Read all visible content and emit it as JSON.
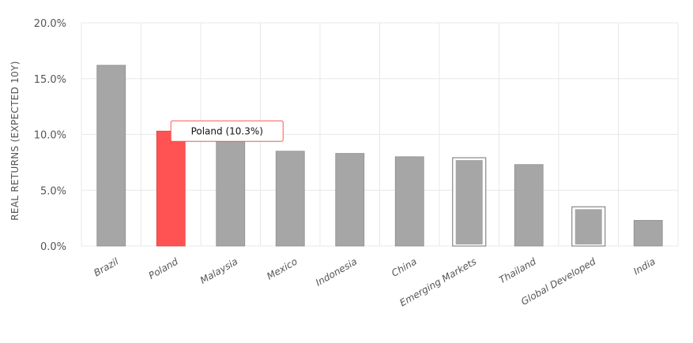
{
  "chart_data": {
    "type": "bar",
    "title": "",
    "xlabel": "",
    "ylabel": "REAL RETURNS (EXPECTED 10Y)",
    "ylim": [
      0,
      20
    ],
    "y_ticks": [
      "0.0%",
      "5.0%",
      "10.0%",
      "15.0%",
      "20.0%"
    ],
    "y_tick_values": [
      0,
      5,
      10,
      15,
      20
    ],
    "grid": true,
    "categories": [
      "Brazil",
      "Poland",
      "Malaysia",
      "Mexico",
      "Indonesia",
      "China",
      "Emerging Markets",
      "Thailand",
      "Global Developed",
      "India"
    ],
    "values": [
      16.2,
      10.3,
      9.5,
      8.5,
      8.3,
      8.0,
      7.7,
      7.3,
      3.3,
      2.3
    ],
    "highlighted": [
      "Poland"
    ],
    "outlined": [
      "Emerging Markets",
      "Global Developed"
    ],
    "colors": {
      "bar": "#a6a6a6",
      "highlight": "#ff5252",
      "bar_outline": "#888888"
    },
    "tooltip": {
      "category": "Poland",
      "text": "Poland (10.3%)"
    }
  }
}
